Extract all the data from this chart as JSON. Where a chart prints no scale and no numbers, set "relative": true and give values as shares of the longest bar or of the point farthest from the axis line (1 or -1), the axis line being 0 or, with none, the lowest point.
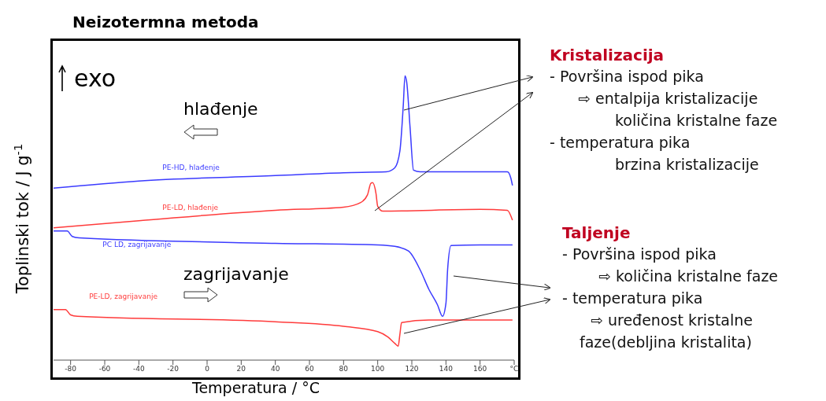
{
  "chart_data": {
    "type": "line",
    "title": "Neizotermna metoda",
    "xlabel": "Temperatura / °C",
    "ylabel": "Toplinski tok / J g$^{-1}$",
    "relative": true,
    "legend": false,
    "grid": false,
    "marker": "none",
    "xlim": [
      -90,
      180
    ],
    "xticks": [
      -80,
      -60,
      -40,
      -20,
      0,
      20,
      40,
      60,
      80,
      100,
      120,
      140,
      160,
      {
        "value": 180,
        "label": "°C"
      }
    ],
    "series": [
      {
        "name": "PE-HD, hlađenje",
        "color": "#3b3bff",
        "x": [
          -90,
          -40,
          40,
          80,
          105,
          110,
          113,
          115,
          116,
          117,
          119,
          121,
          125,
          160,
          176,
          178,
          179
        ],
        "values": [
          0.605,
          0.63,
          0.649,
          0.659,
          0.662,
          0.676,
          0.735,
          0.897,
          1,
          0.978,
          0.816,
          0.668,
          0.662,
          0.662,
          0.662,
          0.641,
          0.614
        ]
      },
      {
        "name": "PE-LD, hlađenje",
        "color": "#ff3b3b",
        "x": [
          -90,
          -40,
          40,
          80,
          90,
          94,
          96,
          97,
          99,
          100,
          103,
          160,
          176,
          179
        ],
        "values": [
          0.465,
          0.49,
          0.527,
          0.538,
          0.554,
          0.581,
          0.622,
          0.624,
          0.586,
          0.541,
          0.524,
          0.53,
          0.527,
          0.492
        ]
      },
      {
        "name": "PC LD, zagrijavanje",
        "color": "#3b3bff",
        "x": [
          -90,
          -82,
          -79,
          -75,
          40,
          100,
          110,
          118,
          125,
          130,
          135,
          138,
          140,
          141,
          143,
          160,
          179
        ],
        "values": [
          0.454,
          0.454,
          0.435,
          0.43,
          0.411,
          0.405,
          0.4,
          0.384,
          0.316,
          0.249,
          0.195,
          0.154,
          0.2,
          0.32,
          0.403,
          0.405,
          0.405
        ]
      },
      {
        "name": "PE-LD, zagrijavanje",
        "color": "#ff3b3b",
        "x": [
          -90,
          -83,
          -80,
          -76,
          40,
          80,
          100,
          106,
          110,
          112,
          113,
          114,
          130,
          179
        ],
        "values": [
          0.178,
          0.178,
          0.159,
          0.154,
          0.135,
          0.119,
          0.1,
          0.081,
          0.059,
          0.049,
          0.09,
          0.132,
          0.141,
          0.141
        ]
      }
    ],
    "annotations": [
      "exo",
      "hlađenje",
      "zagrijavanje",
      "Kristalizacija",
      "- Površina ispod pika",
      "⇨ entalpija kristalizacije",
      "količina kristalne faze",
      "- temperatura pika",
      "brzina kristalizacije",
      "Taljenje",
      "- Površina ispod pika",
      "⇨ količina kristalne faze",
      "- temperatura pika",
      "⇨ uređenost kristalne",
      "faze(debljina kristalita)"
    ]
  }
}
